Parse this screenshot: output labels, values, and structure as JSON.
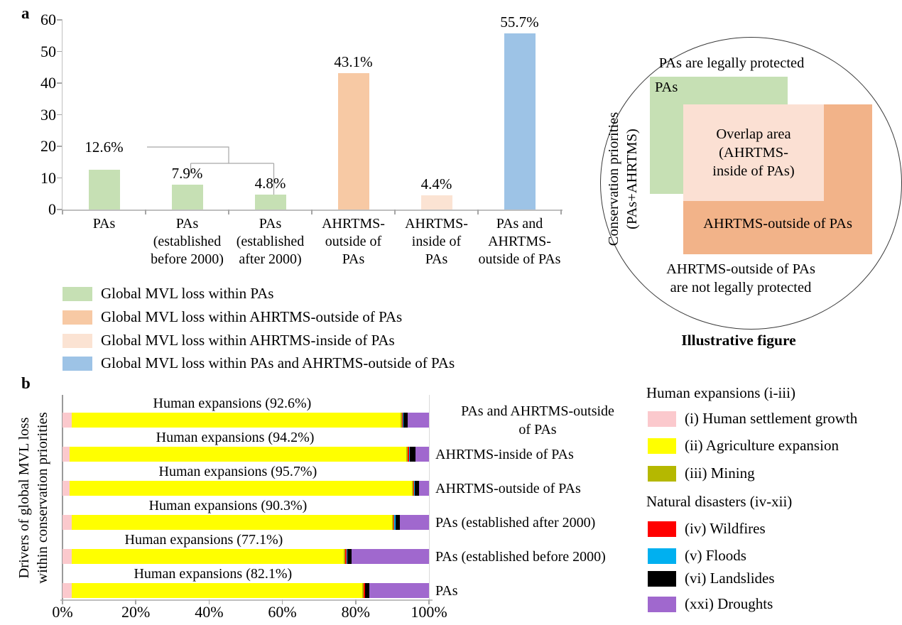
{
  "figure": {
    "panel_a_label": "a",
    "panel_b_label": "b"
  },
  "panel_a": {
    "x_labels": [
      "PAs",
      "PAs\n(established\nbefore 2000)",
      "PAs\n(established\nafter 2000)",
      "AHRTMS-\noutside of\nPAs",
      "AHRTMS-\ninside of\nPAs",
      "PAs and\nAHRTMS-\noutside of PAs"
    ]
  },
  "legend_a": {
    "items": [
      {
        "color": "#c6e0b4",
        "label": "Global MVL loss within PAs"
      },
      {
        "color": "#f7c9a4",
        "label": "Global MVL loss within AHRTMS-outside of PAs"
      },
      {
        "color": "#fbe3d3",
        "label": "Global MVL loss within AHRTMS-inside of PAs"
      },
      {
        "color": "#9dc3e6",
        "label": "Global MVL loss within PAs and AHRTMS-outside of PAs"
      }
    ]
  },
  "illustrative": {
    "top_text": "PAs are legally protected",
    "pas_label": "PAs",
    "overlap_label": "Overlap area\n(AHRTMS-\ninside of PAs)",
    "ahrtms_label": "AHRTMS-outside of PAs",
    "bottom_text": "AHRTMS-outside of PAs\nare not legally protected",
    "side_text": "Conservation priorities\n(PAs+AHRTMS)",
    "caption": "Illustrative figure",
    "colors": {
      "pas_green": "#c6e0b4",
      "ahrtms_orange": "#f2b389",
      "overlap_peach": "#fbe0d3"
    }
  },
  "panel_b": {
    "ylabel_display": "Drivers of global MVL loss\nwithin  conservation priorities",
    "right_labels": [
      "PAs and AHRTMS-outside\nof PAs",
      "AHRTMS-inside of PAs",
      "AHRTMS-outside of PAs",
      "PAs (established after 2000)",
      "PAs (established before 2000)",
      "PAs"
    ]
  },
  "legend_b": {
    "header_human": "Human expansions (i-iii)",
    "items_human": [
      {
        "color": "#fbc9cd",
        "label": "(i) Human settlement growth"
      },
      {
        "color": "#ffff00",
        "label": "(ii) Agriculture expansion"
      },
      {
        "color": "#b5b800",
        "label": "(iii) Mining"
      }
    ],
    "header_natural": "Natural disasters (iv-xii)",
    "items_natural": [
      {
        "color": "#ff0000",
        "label": "(iv) Wildfires"
      },
      {
        "color": "#00b0f0",
        "label": "(v) Floods"
      },
      {
        "color": "#000000",
        "label": "(vi) Landslides"
      },
      {
        "color": "#a068ce",
        "label": "(xxi) Droughts"
      }
    ]
  },
  "chart_data": [
    {
      "type": "bar",
      "panel": "a",
      "categories": [
        "PAs",
        "PAs (established before 2000)",
        "PAs (established after 2000)",
        "AHRTMS-outside of PAs",
        "AHRTMS-inside of PAs",
        "PAs and AHRTMS-outside of PAs"
      ],
      "values": [
        12.6,
        7.9,
        4.8,
        43.1,
        4.4,
        55.7
      ],
      "data_labels": [
        "12.6%",
        "7.9%",
        "4.8%",
        "43.1%",
        "4.4%",
        "55.7%"
      ],
      "bar_colors": [
        "#c6e0b4",
        "#c6e0b4",
        "#c6e0b4",
        "#f7c9a4",
        "#fbe3d3",
        "#9dc3e6"
      ],
      "ylim": [
        0,
        60
      ],
      "yticks": [
        0,
        10,
        20,
        30,
        40,
        50,
        60
      ],
      "grid": false,
      "legend_position": "below",
      "annotation": "bracket linking the 12.6% PAs bar to its before-2000 and after-2000 sub-bars"
    },
    {
      "type": "bar",
      "panel": "b",
      "orientation": "horizontal-stacked",
      "categories_top_to_bottom": [
        "PAs and AHRTMS-outside of PAs",
        "AHRTMS-inside of PAs",
        "AHRTMS-outside of PAs",
        "PAs (established after 2000)",
        "PAs (established before 2000)",
        "PAs"
      ],
      "bar_annotations": [
        "Human expansions (92.6%)",
        "Human expansions (94.2%)",
        "Human expansions (95.7%)",
        "Human expansions (90.3%)",
        "Human expansions (77.1%)",
        "Human expansions (82.1%)"
      ],
      "series": [
        {
          "name": "(i) Human settlement growth",
          "color": "#fbc9cd",
          "values": [
            2.5,
            2.0,
            1.9,
            2.6,
            2.6,
            2.5
          ]
        },
        {
          "name": "(ii) Agriculture expansion",
          "color": "#ffff00",
          "values": [
            89.7,
            91.8,
            93.4,
            87.3,
            74.1,
            79.2
          ]
        },
        {
          "name": "(iii) Mining",
          "color": "#b5b800",
          "values": [
            0.4,
            0.4,
            0.4,
            0.4,
            0.4,
            0.4
          ]
        },
        {
          "name": "(iv) Wildfires",
          "color": "#ff0000",
          "values": [
            0.3,
            0.3,
            0.3,
            0.3,
            0.4,
            0.4
          ]
        },
        {
          "name": "(v) Floods",
          "color": "#00b0f0",
          "values": [
            0.1,
            0.2,
            0.2,
            0.2,
            0.3,
            0.1
          ]
        },
        {
          "name": "(vi) Landslides",
          "color": "#000000",
          "values": [
            1.1,
            1.6,
            1.0,
            1.2,
            1.1,
            1.1
          ]
        },
        {
          "name": "(xxi) Droughts",
          "color": "#a068ce",
          "values": [
            5.9,
            3.7,
            2.8,
            8.0,
            21.1,
            16.3
          ]
        }
      ],
      "xlim": [
        0,
        100
      ],
      "xlabel_ticks": [
        "0%",
        "20%",
        "40%",
        "60%",
        "80%",
        "100%"
      ],
      "ylabel": "Drivers of global MVL loss within conservation priorities"
    }
  ]
}
